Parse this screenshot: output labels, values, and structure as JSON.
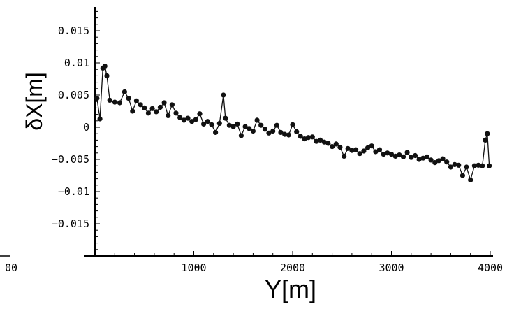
{
  "chart_data": {
    "type": "scatter",
    "title": "",
    "xlabel": "Y[m]",
    "ylabel": "δX[m]",
    "xlim": [
      0,
      4000
    ],
    "ylim": [
      -0.02,
      0.02
    ],
    "x_ticks": [
      {
        "value": 0,
        "label": "00"
      },
      {
        "value": 1000,
        "label": "1000"
      },
      {
        "value": 2000,
        "label": "2000"
      },
      {
        "value": 3000,
        "label": "3000"
      },
      {
        "value": 4000,
        "label": "4000"
      }
    ],
    "y_ticks": [
      {
        "value": 0.015,
        "label": "0.015"
      },
      {
        "value": 0.01,
        "label": "0.01"
      },
      {
        "value": 0.005,
        "label": "0.005"
      },
      {
        "value": 0,
        "label": "0"
      },
      {
        "value": -0.005,
        "label": "-0.005"
      },
      {
        "value": -0.01,
        "label": "-0.01"
      },
      {
        "value": -0.015,
        "label": "-0.015"
      }
    ],
    "grid": false,
    "legend": "none",
    "marker_color": "#111111",
    "connected": true,
    "x": [
      20,
      50,
      80,
      100,
      120,
      150,
      200,
      250,
      300,
      340,
      380,
      420,
      460,
      500,
      540,
      580,
      620,
      660,
      700,
      740,
      780,
      820,
      860,
      900,
      940,
      980,
      1020,
      1060,
      1100,
      1140,
      1180,
      1220,
      1260,
      1300,
      1320,
      1360,
      1400,
      1440,
      1480,
      1520,
      1560,
      1600,
      1640,
      1680,
      1720,
      1760,
      1800,
      1840,
      1880,
      1920,
      1960,
      2000,
      2040,
      2080,
      2120,
      2160,
      2200,
      2240,
      2280,
      2320,
      2360,
      2400,
      2440,
      2480,
      2520,
      2560,
      2600,
      2640,
      2680,
      2720,
      2760,
      2800,
      2840,
      2880,
      2920,
      2960,
      3000,
      3040,
      3080,
      3120,
      3160,
      3200,
      3240,
      3280,
      3320,
      3360,
      3400,
      3440,
      3480,
      3520,
      3560,
      3600,
      3640,
      3680,
      3720,
      3760,
      3800,
      3840,
      3880,
      3920,
      3950,
      3970,
      3990
    ],
    "y": [
      0.0045,
      0.0013,
      0.0092,
      0.0095,
      0.008,
      0.0042,
      0.0039,
      0.0038,
      0.0055,
      0.0045,
      0.0025,
      0.0041,
      0.0035,
      0.003,
      0.0022,
      0.0029,
      0.0024,
      0.0031,
      0.0038,
      0.0018,
      0.0035,
      0.0022,
      0.0015,
      0.0011,
      0.0014,
      0.0009,
      0.0012,
      0.0021,
      0.0005,
      0.0009,
      0.0004,
      -0.0008,
      0.0006,
      0.005,
      0.0014,
      0.0003,
      0.0001,
      0.0005,
      -0.0013,
      0.0001,
      -0.0002,
      -0.0006,
      0.0011,
      0.0003,
      -0.0003,
      -0.0009,
      -0.0006,
      0.0003,
      -0.0008,
      -0.0011,
      -0.0012,
      0.0004,
      -0.0007,
      -0.0014,
      -0.0018,
      -0.0016,
      -0.0015,
      -0.0022,
      -0.002,
      -0.0023,
      -0.0025,
      -0.003,
      -0.0026,
      -0.0031,
      -0.0045,
      -0.0033,
      -0.0036,
      -0.0035,
      -0.0041,
      -0.0037,
      -0.0032,
      -0.0029,
      -0.0038,
      -0.0035,
      -0.0042,
      -0.004,
      -0.0042,
      -0.0045,
      -0.0043,
      -0.0046,
      -0.0039,
      -0.0047,
      -0.0044,
      -0.005,
      -0.0048,
      -0.0046,
      -0.0051,
      -0.0055,
      -0.0052,
      -0.0049,
      -0.0054,
      -0.0062,
      -0.0058,
      -0.0059,
      -0.0075,
      -0.0062,
      -0.0082,
      -0.006,
      -0.0059,
      -0.006,
      -0.002,
      -0.001,
      -0.006
    ]
  }
}
